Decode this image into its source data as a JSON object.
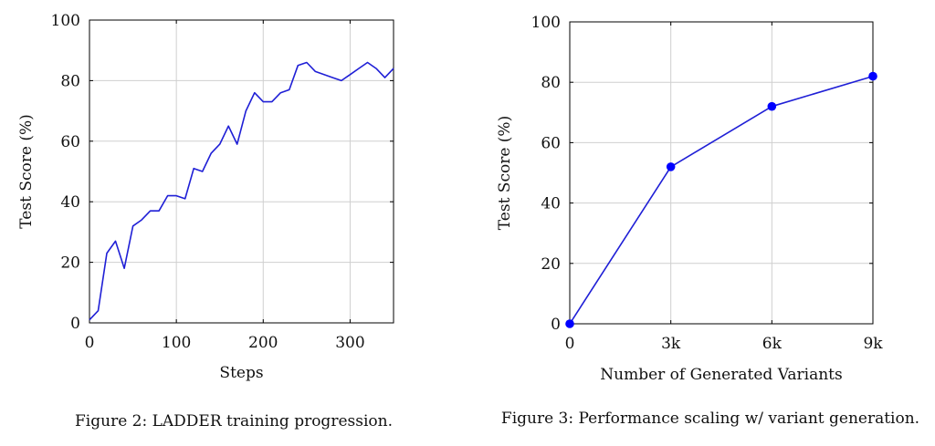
{
  "figures": [
    {
      "caption": "Figure 2: LADDER training progression."
    },
    {
      "caption": "Figure 3: Performance scaling w/ variant generation."
    }
  ],
  "chart_data": [
    {
      "type": "line",
      "title": "",
      "xlabel": "Steps",
      "ylabel": "Test Score (%)",
      "xlim": [
        0,
        350
      ],
      "ylim": [
        0,
        100
      ],
      "grid": true,
      "line_color": "#1f1fd6",
      "x_ticks": [
        0,
        100,
        200,
        300
      ],
      "x_tick_labels": [
        "0",
        "100",
        "200",
        "300"
      ],
      "y_ticks": [
        0,
        20,
        40,
        60,
        80,
        100
      ],
      "y_tick_labels": [
        "0",
        "20",
        "40",
        "60",
        "80",
        "100"
      ],
      "series": [
        {
          "x": [
            0,
            10,
            20,
            30,
            40,
            50,
            60,
            70,
            80,
            90,
            100,
            110,
            120,
            130,
            140,
            150,
            160,
            170,
            180,
            190,
            200,
            210,
            220,
            230,
            240,
            250,
            260,
            270,
            280,
            290,
            300,
            310,
            320,
            330,
            340,
            350
          ],
          "y": [
            1,
            4,
            23,
            27,
            18,
            32,
            34,
            37,
            37,
            42,
            42,
            41,
            51,
            50,
            56,
            59,
            65,
            59,
            70,
            76,
            73,
            73,
            76,
            77,
            85,
            86,
            83,
            82,
            81,
            80,
            82,
            84,
            86,
            84,
            81,
            84
          ],
          "markers": false
        }
      ]
    },
    {
      "type": "line",
      "title": "",
      "xlabel": "Number of Generated Variants",
      "ylabel": "Test Score (%)",
      "xlim": [
        0,
        9000
      ],
      "ylim": [
        0,
        100
      ],
      "grid": true,
      "line_color": "#1f1fd6",
      "marker_color": "#0000ff",
      "x_ticks": [
        0,
        3000,
        6000,
        9000
      ],
      "x_tick_labels": [
        "0",
        "3k",
        "6k",
        "9k"
      ],
      "y_ticks": [
        0,
        20,
        40,
        60,
        80,
        100
      ],
      "y_tick_labels": [
        "0",
        "20",
        "40",
        "60",
        "80",
        "100"
      ],
      "series": [
        {
          "x": [
            0,
            3000,
            6000,
            9000
          ],
          "y": [
            0,
            52,
            72,
            82
          ],
          "markers": true
        }
      ]
    }
  ]
}
